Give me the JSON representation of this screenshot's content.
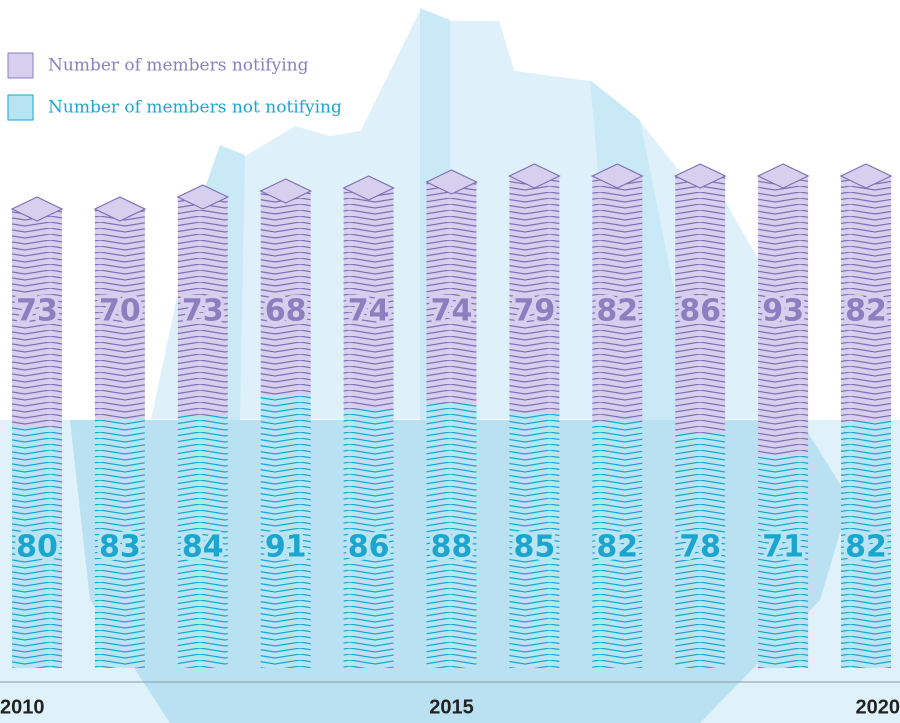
{
  "chart_data": {
    "type": "stacked-bar",
    "categories": [
      "2010",
      null,
      null,
      null,
      null,
      "2015",
      null,
      null,
      null,
      null,
      "2020"
    ],
    "series": [
      {
        "name": "Number of members not notifying",
        "color": "#1aa6cf",
        "values": [
          80,
          83,
          84,
          91,
          86,
          88,
          85,
          82,
          78,
          71,
          82
        ]
      },
      {
        "name": "Number of members notifying",
        "color": "#8b7fc0",
        "values": [
          73,
          70,
          73,
          68,
          74,
          74,
          79,
          82,
          86,
          93,
          82
        ]
      }
    ],
    "legend": [
      "Number of members notifying",
      "Number of members not notifying"
    ]
  }
}
